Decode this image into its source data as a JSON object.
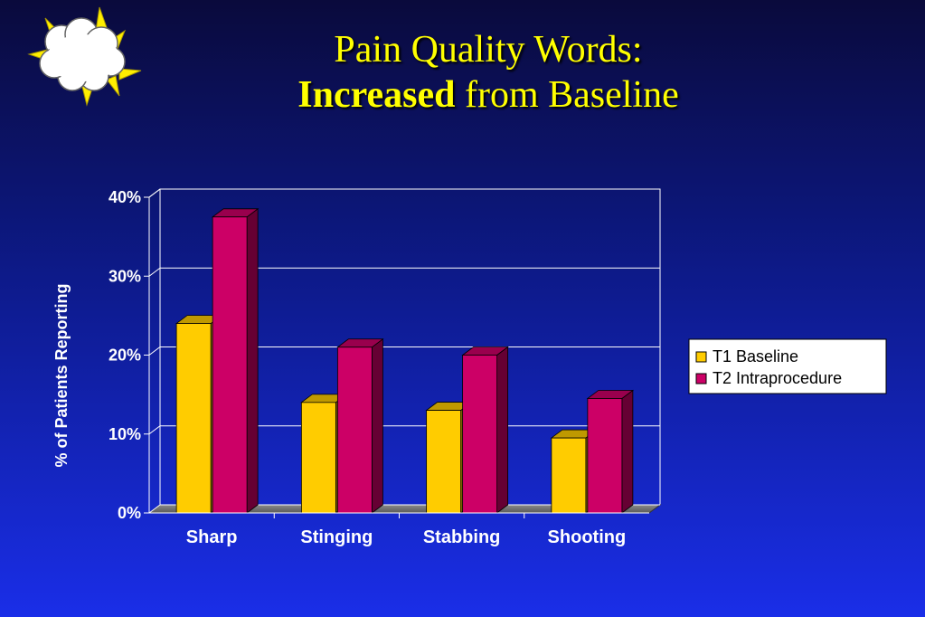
{
  "slide": {
    "title_line1": "Pain Quality Words:",
    "title_line2_bold": "Increased",
    "title_line2_rest": " from Baseline"
  },
  "icon": "cloud-sun-icon",
  "colors": {
    "title": "#ffff00",
    "t1": "#ffcc00",
    "t2": "#cc0066",
    "axis_text": "#ffffff"
  },
  "chart_data": {
    "type": "bar",
    "categories": [
      "Sharp",
      "Stinging",
      "Stabbing",
      "Shooting"
    ],
    "series": [
      {
        "name": "T1 Baseline",
        "values": [
          24,
          14,
          13,
          9.5
        ],
        "color": "#ffcc00"
      },
      {
        "name": "T2 Intraprocedure",
        "values": [
          37.5,
          21,
          20,
          14.5
        ],
        "color": "#cc0066"
      }
    ],
    "yticks": [
      "0%",
      "10%",
      "20%",
      "30%",
      "40%"
    ],
    "ylim": [
      0,
      40
    ],
    "ylabel": "% of Patients Reporting",
    "xlabel": "",
    "grid": true,
    "legend_position": "right",
    "three_d": true
  }
}
